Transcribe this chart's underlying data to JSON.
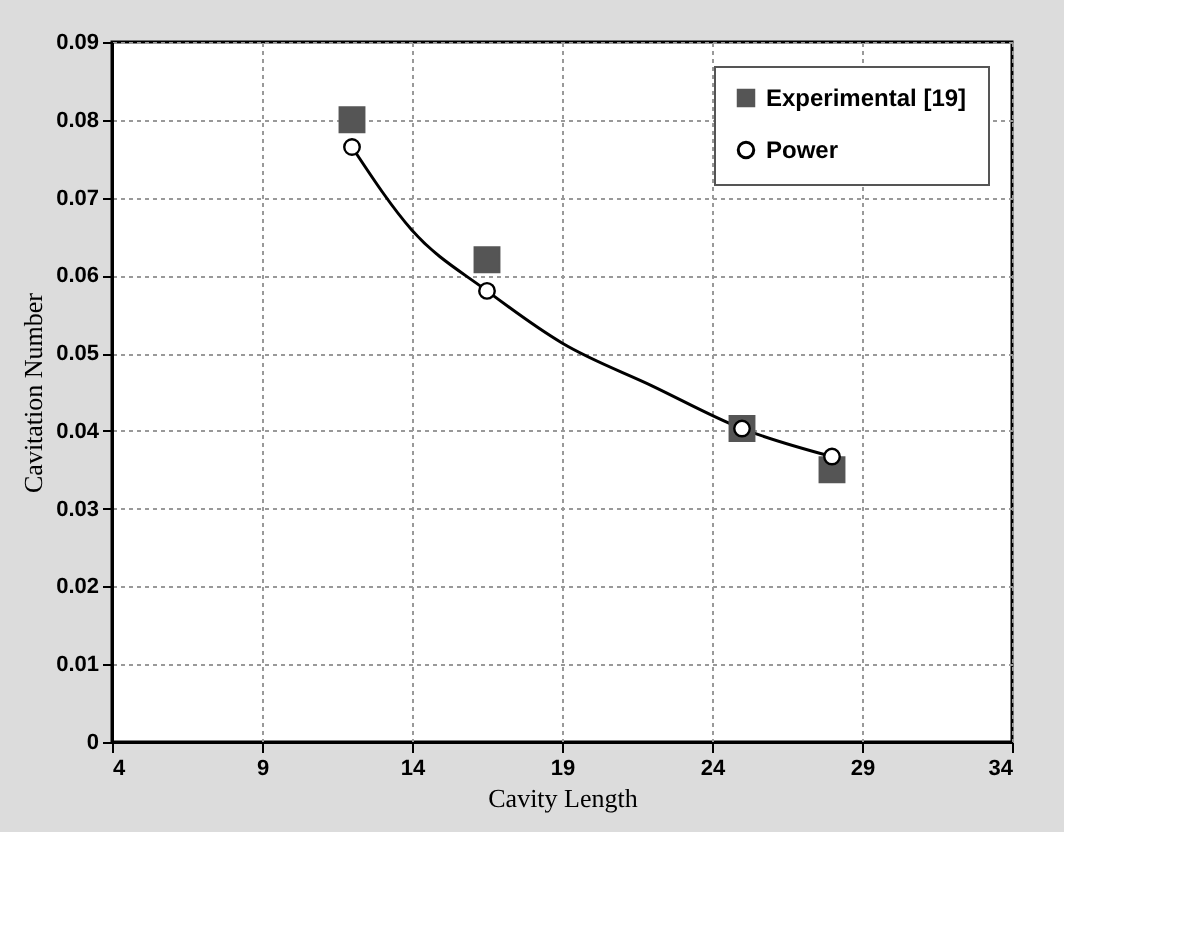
{
  "chart_data": {
    "type": "scatter",
    "xlabel": "Cavity Length",
    "ylabel": "Cavitation Number",
    "xlim": [
      4,
      34
    ],
    "xticks": [
      4,
      9,
      14,
      19,
      24,
      29,
      34
    ],
    "ylim": [
      0,
      0.09
    ],
    "yticks": [
      0,
      0.01,
      0.02,
      0.03,
      0.04,
      0.05,
      0.06,
      0.07,
      0.08,
      0.09
    ],
    "grid": true,
    "legend": "top right",
    "series": [
      {
        "name": "Experimental [19]",
        "type": "scatter",
        "marker": "square",
        "color": "#555555",
        "x": [
          12,
          16.5,
          25,
          28
        ],
        "values": [
          0.08,
          0.062,
          0.0403,
          0.035
        ]
      },
      {
        "name": "Power",
        "type": "scatter",
        "marker": "circle",
        "color": "#000000",
        "x": [
          12,
          16.5,
          25,
          28
        ],
        "values": [
          0.0765,
          0.058,
          0.0403,
          0.0367
        ]
      },
      {
        "type": "line",
        "marker": "none",
        "line_style": "solid",
        "color": "#000000",
        "x": [
          12,
          14,
          16.5,
          19,
          22,
          25,
          28
        ],
        "values": [
          0.0765,
          0.0658,
          0.058,
          0.0513,
          0.0458,
          0.0403,
          0.0367
        ]
      }
    ]
  }
}
